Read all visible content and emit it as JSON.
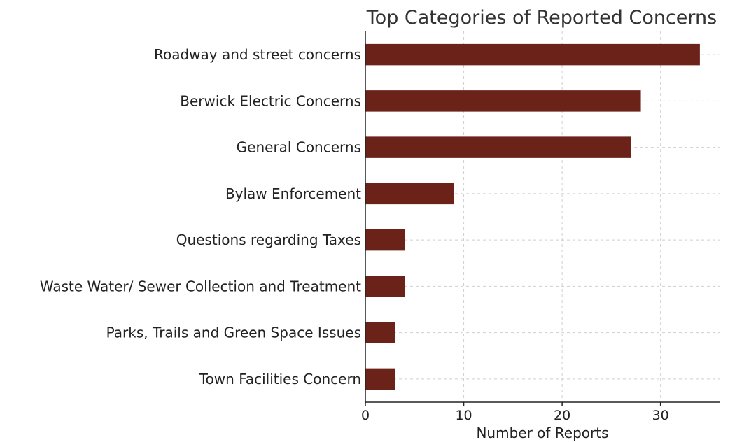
{
  "chart_data": {
    "type": "bar",
    "orientation": "horizontal",
    "title": "Top Categories of Reported Concerns",
    "xlabel": "Number of Reports",
    "ylabel": "",
    "categories": [
      "Roadway and street concerns",
      "Berwick Electric Concerns",
      "General Concerns",
      "Bylaw Enforcement",
      "Questions regarding Taxes",
      "Waste Water/ Sewer Collection and Treatment",
      "Parks, Trails and Green Space Issues",
      "Town Facilities Concern"
    ],
    "values": [
      34,
      28,
      27,
      9,
      4,
      4,
      3,
      3
    ],
    "xlim": [
      0,
      36
    ],
    "xticks": [
      0,
      10,
      20,
      30
    ],
    "grid": true,
    "bar_color": "#6b2218"
  }
}
